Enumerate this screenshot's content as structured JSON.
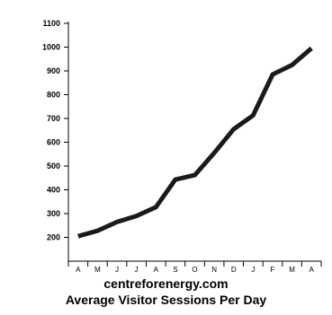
{
  "chart_data": {
    "type": "line",
    "title": "Average Visitor Sessions Per Day",
    "source": "centreforenergy.com",
    "xlabel": "",
    "ylabel": "",
    "categories": [
      "A",
      "M",
      "J",
      "J",
      "A",
      "S",
      "O",
      "N",
      "D",
      "J",
      "F",
      "M",
      "A"
    ],
    "series": [
      {
        "values": [
          205,
          228,
          265,
          290,
          327,
          443,
          462,
          555,
          655,
          713,
          885,
          925,
          995
        ]
      }
    ],
    "yticks": [
      200,
      300,
      400,
      500,
      600,
      700,
      800,
      900,
      1000,
      1100
    ],
    "ylim": [
      100,
      1100
    ],
    "grid": false,
    "legend": "none",
    "line_color": "#1a1a1a",
    "axis_color": "#000000"
  }
}
